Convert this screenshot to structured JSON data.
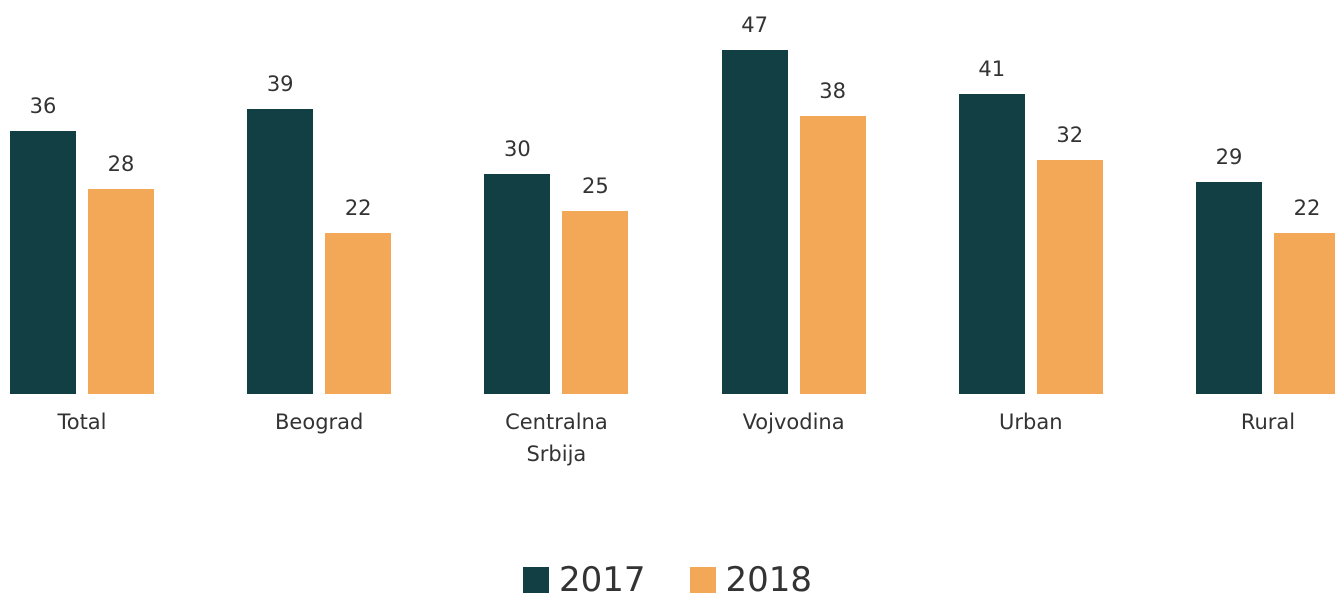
{
  "chart_data": {
    "type": "bar",
    "categories": [
      "Total",
      "Beograd",
      "Centralna Srbija",
      "Vojvodina",
      "Urban",
      "Rural"
    ],
    "series": [
      {
        "name": "2017",
        "color": "#123f44",
        "values": [
          36,
          39,
          30,
          47,
          41,
          29
        ]
      },
      {
        "name": "2018",
        "color": "#f2a857",
        "values": [
          28,
          22,
          25,
          38,
          32,
          22
        ]
      }
    ],
    "legend": "bottom"
  }
}
